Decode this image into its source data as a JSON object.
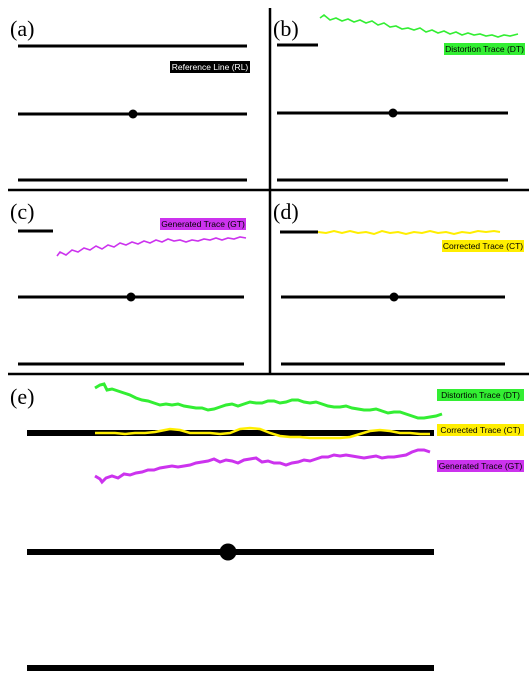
{
  "colors": {
    "reference": "#000000",
    "distortion": "#33ee33",
    "generated": "#cc33ee",
    "corrected": "#ffee00"
  },
  "panels": {
    "a": {
      "label": "(a)",
      "tag": "Reference Line (RL)"
    },
    "b": {
      "label": "(b)",
      "tag": "Distortion Trace (DT)"
    },
    "c": {
      "label": "(c)",
      "tag": "Generated Trace (GT)"
    },
    "d": {
      "label": "(d)",
      "tag": "Corrected Trace (CT)"
    },
    "e": {
      "label": "(e)",
      "tags": {
        "distortion": "Distortion Trace (DT)",
        "corrected": "Corrected Trace (CT)",
        "generated": "Generated Trace (GT)"
      }
    }
  }
}
